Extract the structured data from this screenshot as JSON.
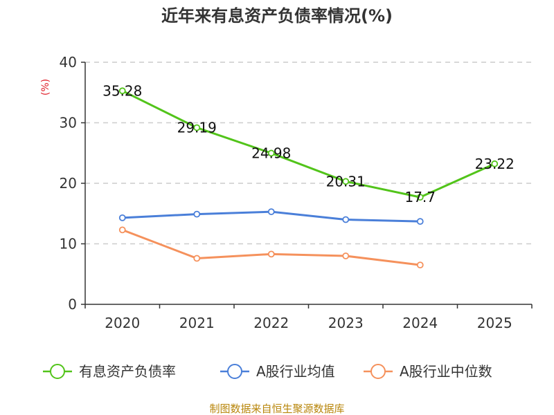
{
  "chart_data": {
    "type": "line",
    "title": "近年来有息资产负债率情况(%)",
    "ylabel": "(%)",
    "xlabel": "",
    "categories": [
      "2020",
      "2021",
      "2022",
      "2023",
      "2024",
      "2025"
    ],
    "ylim": [
      0,
      40
    ],
    "yticks": [
      0,
      10,
      20,
      30,
      40
    ],
    "grid": true,
    "legend_position": "bottom",
    "series": [
      {
        "name": "有息资产负债率",
        "color": "#52c41a",
        "values": [
          35.28,
          29.19,
          24.98,
          20.31,
          17.7,
          23.22
        ],
        "labels": [
          "35.28",
          "29.19",
          "24.98",
          "20.31",
          "17.7",
          "23.22"
        ]
      },
      {
        "name": "A股行业均值",
        "color": "#4a7fd9",
        "values": [
          14.3,
          14.9,
          15.3,
          14.0,
          13.7,
          null
        ]
      },
      {
        "name": "A股行业中位数",
        "color": "#f5915c",
        "values": [
          12.3,
          7.6,
          8.3,
          8.0,
          6.5,
          null
        ]
      }
    ],
    "source": "制图数据来自恒生聚源数据库",
    "ylabel_color": "#e0202a",
    "source_color": "#b8860b"
  }
}
